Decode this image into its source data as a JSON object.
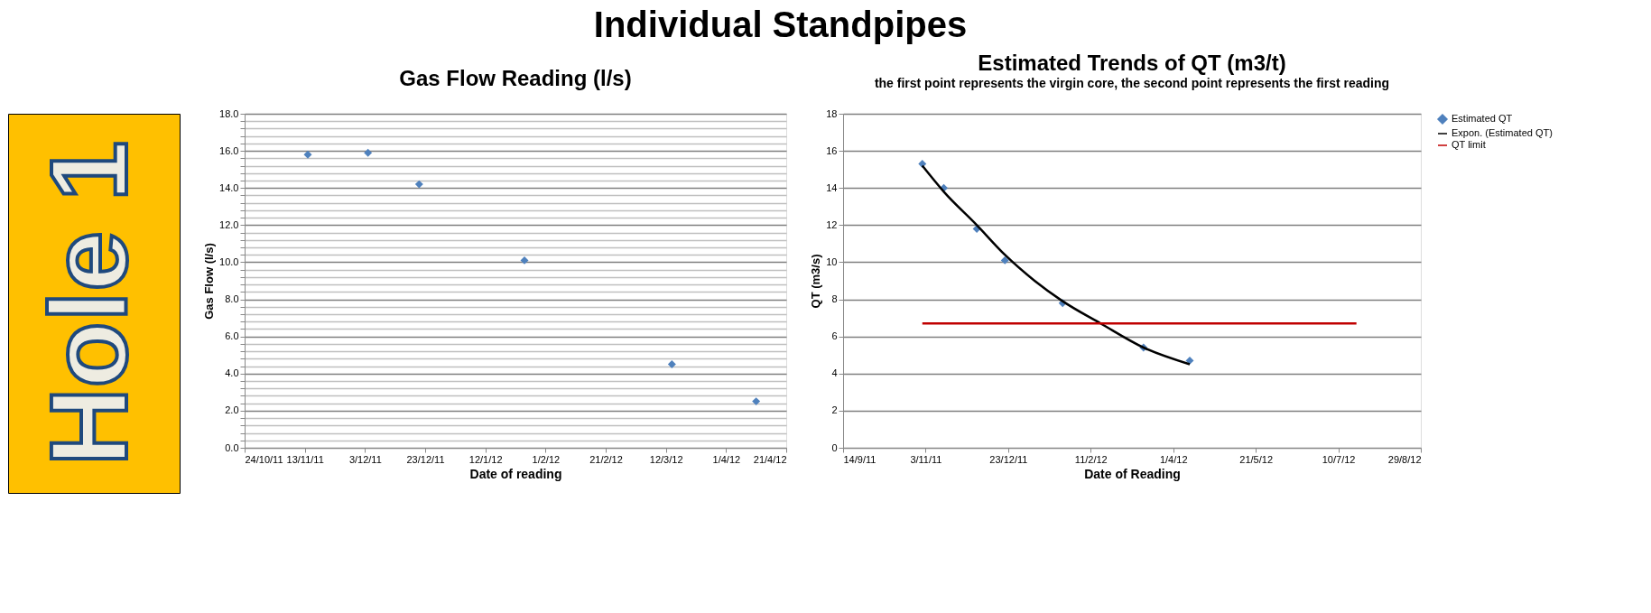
{
  "chart_data": [
    {
      "type": "scatter",
      "title": "Gas Flow Reading (l/s)",
      "annotations": [
        "Individual Standpipes",
        "Hole 1"
      ],
      "xlabel": "Date of reading",
      "ylabel": "Gas Flow  (l/s)",
      "marker": "diamond",
      "grid": "y",
      "legend": false,
      "x": [
        "2011-11-14",
        "2011-12-04",
        "2011-12-21",
        "2012-01-25",
        "2012-03-14",
        "2012-04-11"
      ],
      "series": [
        {
          "color": "#4f81bd",
          "values": [
            15.8,
            15.9,
            14.2,
            10.1,
            4.5,
            2.5
          ]
        }
      ],
      "xlim": [
        "2011-10-24",
        "2012-04-21"
      ],
      "xticks": [
        {
          "value": "2011-10-24",
          "label": "24/10/11"
        },
        {
          "value": "2011-11-13",
          "label": "13/11/11"
        },
        {
          "value": "2011-12-03",
          "label": "3/12/11"
        },
        {
          "value": "2011-12-23",
          "label": "23/12/11"
        },
        {
          "value": "2012-01-12",
          "label": "12/1/12"
        },
        {
          "value": "2012-02-01",
          "label": "1/2/12"
        },
        {
          "value": "2012-02-21",
          "label": "21/2/12"
        },
        {
          "value": "2012-03-12",
          "label": "12/3/12"
        },
        {
          "value": "2012-04-01",
          "label": "1/4/12"
        },
        {
          "value": "2012-04-21",
          "label": "21/4/12"
        }
      ],
      "ylim": [
        0,
        18
      ],
      "yticks": [
        {
          "value": 0,
          "label": "0.0"
        },
        {
          "value": 0.4,
          "label": null
        },
        {
          "value": 0.8,
          "label": null
        },
        {
          "value": 1.2,
          "label": null
        },
        {
          "value": 1.6,
          "label": null
        },
        {
          "value": 2,
          "label": "2.0"
        },
        {
          "value": 2.4,
          "label": null
        },
        {
          "value": 2.8,
          "label": null
        },
        {
          "value": 3.2,
          "label": null
        },
        {
          "value": 3.6,
          "label": null
        },
        {
          "value": 4,
          "label": "4.0"
        },
        {
          "value": 4.4,
          "label": null
        },
        {
          "value": 4.8,
          "label": null
        },
        {
          "value": 5.2,
          "label": null
        },
        {
          "value": 5.6,
          "label": null
        },
        {
          "value": 6,
          "label": "6.0"
        },
        {
          "value": 6.4,
          "label": null
        },
        {
          "value": 6.8,
          "label": null
        },
        {
          "value": 7.2,
          "label": null
        },
        {
          "value": 7.6,
          "label": null
        },
        {
          "value": 8,
          "label": "8.0"
        },
        {
          "value": 8.4,
          "label": null
        },
        {
          "value": 8.8,
          "label": null
        },
        {
          "value": 9.2,
          "label": null
        },
        {
          "value": 9.6,
          "label": null
        },
        {
          "value": 10,
          "label": "10.0"
        },
        {
          "value": 10.4,
          "label": null
        },
        {
          "value": 10.8,
          "label": null
        },
        {
          "value": 11.2,
          "label": null
        },
        {
          "value": 11.6,
          "label": null
        },
        {
          "value": 12,
          "label": "12.0"
        },
        {
          "value": 12.4,
          "label": null
        },
        {
          "value": 12.8,
          "label": null
        },
        {
          "value": 13.2,
          "label": null
        },
        {
          "value": 13.6,
          "label": null
        },
        {
          "value": 14,
          "label": "14.0"
        },
        {
          "value": 14.4,
          "label": null
        },
        {
          "value": 14.8,
          "label": null
        },
        {
          "value": 15.2,
          "label": null
        },
        {
          "value": 15.6,
          "label": null
        },
        {
          "value": 16,
          "label": "16.0"
        },
        {
          "value": 16.4,
          "label": null
        },
        {
          "value": 16.8,
          "label": null
        },
        {
          "value": 17.2,
          "label": null
        },
        {
          "value": 17.6,
          "label": null
        },
        {
          "value": 18,
          "label": "18.0"
        }
      ]
    },
    {
      "type": "scatter",
      "title": "Estimated Trends of QT (m3/t)",
      "subtitle": "the first point represents the virgin core, the second point represents the first reading",
      "xlabel": "Date of Reading",
      "ylabel": "QT (m3/s)",
      "grid": "y",
      "legend": "right",
      "series": [
        {
          "name": "Estimated QT",
          "type": "scatter",
          "marker": "diamond",
          "color": "#4f81bd",
          "x": [
            "2011-11-01",
            "2011-11-14",
            "2011-12-04",
            "2011-12-21",
            "2012-01-25",
            "2012-03-14",
            "2012-04-11"
          ],
          "values": [
            15.3,
            14.0,
            11.8,
            10.1,
            7.8,
            5.4,
            4.7
          ]
        },
        {
          "name": "Expon. (Estimated QT)",
          "type": "line",
          "marker": "none",
          "color": "#000000",
          "x": [
            "2011-11-01",
            "2011-11-14",
            "2011-12-04",
            "2011-12-21",
            "2012-01-08",
            "2012-01-25",
            "2012-02-17",
            "2012-03-14",
            "2012-04-11"
          ],
          "values": [
            15.2,
            13.8,
            12.0,
            10.4,
            9.0,
            7.9,
            6.7,
            5.4,
            4.5
          ]
        },
        {
          "name": "QT limit",
          "type": "line",
          "marker": "none",
          "color": "#c00000",
          "x": [
            "2011-11-01",
            "2012-07-21"
          ],
          "values": [
            6.7,
            6.7
          ]
        }
      ],
      "xlim": [
        "2011-09-14",
        "2012-08-29"
      ],
      "xticks": [
        {
          "value": "2011-09-14",
          "label": "14/9/11"
        },
        {
          "value": "2011-11-03",
          "label": "3/11/11"
        },
        {
          "value": "2011-12-23",
          "label": "23/12/11"
        },
        {
          "value": "2012-02-11",
          "label": "11/2/12"
        },
        {
          "value": "2012-04-01",
          "label": "1/4/12"
        },
        {
          "value": "2012-05-21",
          "label": "21/5/12"
        },
        {
          "value": "2012-07-10",
          "label": "10/7/12"
        },
        {
          "value": "2012-08-29",
          "label": "29/8/12"
        }
      ],
      "ylim": [
        0,
        18
      ],
      "yticks": [
        0,
        2,
        4,
        6,
        8,
        10,
        12,
        14,
        16,
        18
      ]
    }
  ]
}
